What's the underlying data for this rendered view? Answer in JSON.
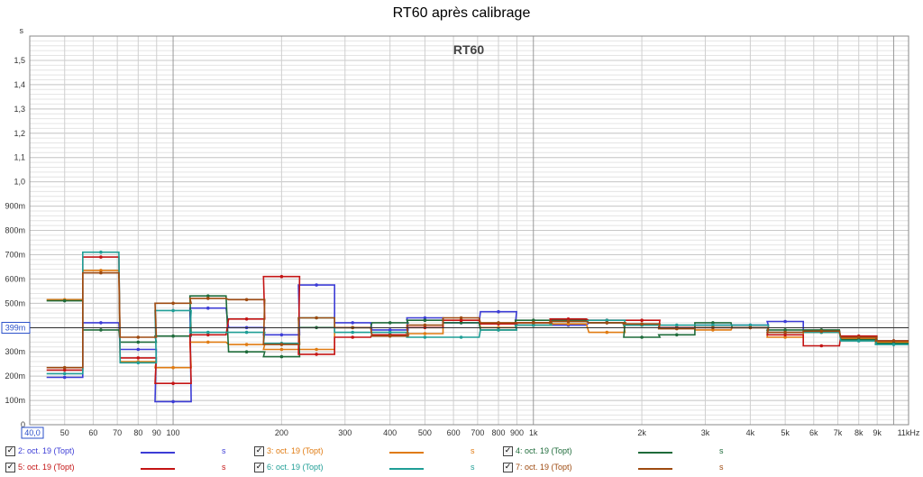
{
  "window": {
    "title": "RT60 après calibrage"
  },
  "chart_data": {
    "type": "line",
    "title": "RT60 après calibrage",
    "plot_label": "RT60",
    "y_unit": "s",
    "x_unit": "",
    "x_scale": "log",
    "xlim": [
      40,
      11000
    ],
    "ylim": [
      0,
      1.6
    ],
    "x_range_start_label": "40,0",
    "cursor_value": 0.399,
    "cursor_label": "399m",
    "y_ticks": [
      {
        "v": 0,
        "label": "0"
      },
      {
        "v": 0.1,
        "label": "100m"
      },
      {
        "v": 0.2,
        "label": "200m"
      },
      {
        "v": 0.3,
        "label": "300m"
      },
      {
        "v": 0.4,
        "label": "400m"
      },
      {
        "v": 0.5,
        "label": "500m"
      },
      {
        "v": 0.6,
        "label": "600m"
      },
      {
        "v": 0.7,
        "label": "700m"
      },
      {
        "v": 0.8,
        "label": "800m"
      },
      {
        "v": 0.9,
        "label": "900m"
      },
      {
        "v": 1.0,
        "label": "1,0"
      },
      {
        "v": 1.1,
        "label": "1,1"
      },
      {
        "v": 1.2,
        "label": "1,2"
      },
      {
        "v": 1.3,
        "label": "1,3"
      },
      {
        "v": 1.4,
        "label": "1,4"
      },
      {
        "v": 1.5,
        "label": "1,5"
      }
    ],
    "x_ticks": [
      {
        "v": 50,
        "label": "50"
      },
      {
        "v": 60,
        "label": "60"
      },
      {
        "v": 70,
        "label": "70"
      },
      {
        "v": 80,
        "label": "80"
      },
      {
        "v": 90,
        "label": "90"
      },
      {
        "v": 100,
        "label": "100"
      },
      {
        "v": 200,
        "label": "200"
      },
      {
        "v": 300,
        "label": "300"
      },
      {
        "v": 400,
        "label": "400"
      },
      {
        "v": 500,
        "label": "500"
      },
      {
        "v": 600,
        "label": "600"
      },
      {
        "v": 700,
        "label": "700"
      },
      {
        "v": 800,
        "label": "800"
      },
      {
        "v": 900,
        "label": "900"
      },
      {
        "v": 1000,
        "label": "1k"
      },
      {
        "v": 2000,
        "label": "2k"
      },
      {
        "v": 3000,
        "label": "3k"
      },
      {
        "v": 4000,
        "label": "4k"
      },
      {
        "v": 5000,
        "label": "5k"
      },
      {
        "v": 6000,
        "label": "6k"
      },
      {
        "v": 7000,
        "label": "7k"
      },
      {
        "v": 8000,
        "label": "8k"
      },
      {
        "v": 9000,
        "label": "9k"
      },
      {
        "v": 11000,
        "label": "11kHz"
      }
    ],
    "grid": true,
    "legend_position": "bottom",
    "band_centers": [
      50,
      63,
      80,
      100,
      125,
      160,
      200,
      250,
      315,
      400,
      500,
      630,
      800,
      1000,
      1250,
      1600,
      2000,
      2500,
      3150,
      4000,
      5000,
      6300,
      8000,
      10000
    ],
    "series": [
      {
        "name": "2: oct. 19 (Topt)",
        "unit": "s",
        "color": "#3c3cd6",
        "values": [
          0.195,
          0.42,
          0.31,
          0.095,
          0.48,
          0.4,
          0.37,
          0.575,
          0.42,
          0.39,
          0.44,
          0.42,
          0.465,
          0.41,
          0.41,
          0.42,
          0.41,
          0.4,
          0.41,
          0.41,
          0.425,
          0.385,
          0.355,
          0.345
        ]
      },
      {
        "name": "3: oct. 19 (Topt)",
        "unit": "s",
        "color": "#e07b12",
        "values": [
          0.515,
          0.635,
          0.26,
          0.235,
          0.34,
          0.33,
          0.31,
          0.31,
          0.4,
          0.37,
          0.375,
          0.43,
          0.4,
          0.41,
          0.415,
          0.38,
          0.41,
          0.4,
          0.39,
          0.4,
          0.36,
          0.38,
          0.355,
          0.34
        ]
      },
      {
        "name": "4: oct. 19 (Topt)",
        "unit": "s",
        "color": "#1e6b3a",
        "values": [
          0.51,
          0.39,
          0.34,
          0.365,
          0.53,
          0.3,
          0.28,
          0.4,
          0.4,
          0.42,
          0.43,
          0.42,
          0.39,
          0.43,
          0.43,
          0.42,
          0.36,
          0.37,
          0.42,
          0.4,
          0.39,
          0.39,
          0.35,
          0.335
        ]
      },
      {
        "name": "5: oct. 19 (Topt)",
        "unit": "s",
        "color": "#c41414",
        "values": [
          0.225,
          0.69,
          0.275,
          0.17,
          0.37,
          0.435,
          0.61,
          0.29,
          0.36,
          0.37,
          0.4,
          0.43,
          0.415,
          0.42,
          0.435,
          0.43,
          0.43,
          0.4,
          0.4,
          0.4,
          0.37,
          0.325,
          0.365,
          0.345
        ]
      },
      {
        "name": "6: oct. 19 (Topt)",
        "unit": "s",
        "color": "#1f9e96",
        "values": [
          0.21,
          0.71,
          0.255,
          0.47,
          0.38,
          0.38,
          0.335,
          0.44,
          0.38,
          0.38,
          0.36,
          0.36,
          0.39,
          0.41,
          0.425,
          0.43,
          0.41,
          0.41,
          0.41,
          0.41,
          0.38,
          0.38,
          0.345,
          0.33
        ]
      },
      {
        "name": "7: oct. 19 (Topt)",
        "unit": "s",
        "color": "#9e4a10",
        "values": [
          0.235,
          0.625,
          0.36,
          0.5,
          0.52,
          0.515,
          0.33,
          0.44,
          0.4,
          0.365,
          0.41,
          0.44,
          0.42,
          0.42,
          0.425,
          0.42,
          0.415,
          0.395,
          0.4,
          0.4,
          0.38,
          0.385,
          0.36,
          0.345
        ]
      }
    ]
  }
}
